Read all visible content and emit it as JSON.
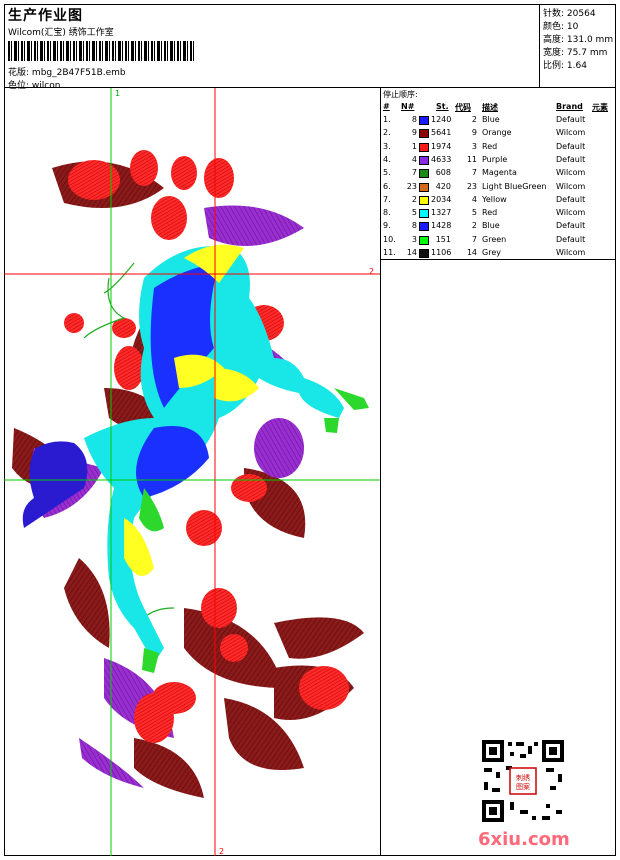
{
  "header": {
    "title": "生产作业图",
    "company": "Wilcom(汇宝) 绣饰工作室",
    "pattern_label": "花版:",
    "pattern_value": "mbg_2B47F51B.emb",
    "color_pos_label": "色位:",
    "color_pos_value": "wilcon"
  },
  "stats": {
    "stitches_label": "针数:",
    "stitches_value": "20564",
    "colors_label": "颜色:",
    "colors_value": "10",
    "height_label": "高度:",
    "height_value": "131.0 mm",
    "width_label": "宽度:",
    "width_value": "75.7 mm",
    "scale_label": "比例:",
    "scale_value": "1.64"
  },
  "guides": {
    "v1": "1",
    "h2": "2",
    "v2": "2"
  },
  "stops": {
    "caption": "停止顺序:",
    "headers": {
      "idx": "#",
      "n": "N#",
      "st": "St.",
      "code": "代码",
      "desc": "描述",
      "brand": "Brand",
      "elem": "元素"
    },
    "rows": [
      {
        "idx": "1.",
        "n": "8",
        "color": "#1a1aff",
        "st": "1240",
        "code": "2",
        "desc": "Blue",
        "brand": "Default"
      },
      {
        "idx": "2.",
        "n": "9",
        "color": "#8b0000",
        "st": "5641",
        "code": "9",
        "desc": "Orange",
        "brand": "Wilcom"
      },
      {
        "idx": "3.",
        "n": "1",
        "color": "#ff1a1a",
        "st": "1974",
        "code": "3",
        "desc": "Red",
        "brand": "Default"
      },
      {
        "idx": "4.",
        "n": "4",
        "color": "#8a2be2",
        "st": "4633",
        "code": "11",
        "desc": "Purple",
        "brand": "Default"
      },
      {
        "idx": "5.",
        "n": "7",
        "color": "#1a8a1a",
        "st": "608",
        "code": "7",
        "desc": "Magenta",
        "brand": "Wilcom"
      },
      {
        "idx": "6.",
        "n": "23",
        "color": "#d2691e",
        "st": "420",
        "code": "23",
        "desc": "Light BlueGreen",
        "brand": "Wilcom"
      },
      {
        "idx": "7.",
        "n": "2",
        "color": "#ffff00",
        "st": "2034",
        "code": "4",
        "desc": "Yellow",
        "brand": "Default"
      },
      {
        "idx": "8.",
        "n": "5",
        "color": "#00ffff",
        "st": "1327",
        "code": "5",
        "desc": "Red",
        "brand": "Wilcom"
      },
      {
        "idx": "9.",
        "n": "8",
        "color": "#1a1aff",
        "st": "1428",
        "code": "2",
        "desc": "Blue",
        "brand": "Default"
      },
      {
        "idx": "10.",
        "n": "3",
        "color": "#00ff00",
        "st": "151",
        "code": "7",
        "desc": "Green",
        "brand": "Default"
      },
      {
        "idx": "11.",
        "n": "14",
        "color": "#111111",
        "st": "1106",
        "code": "14",
        "desc": "Grey",
        "brand": "Wilcom"
      }
    ]
  },
  "watermark": "6xiu.com",
  "qr_stamp": "刺绣图案"
}
